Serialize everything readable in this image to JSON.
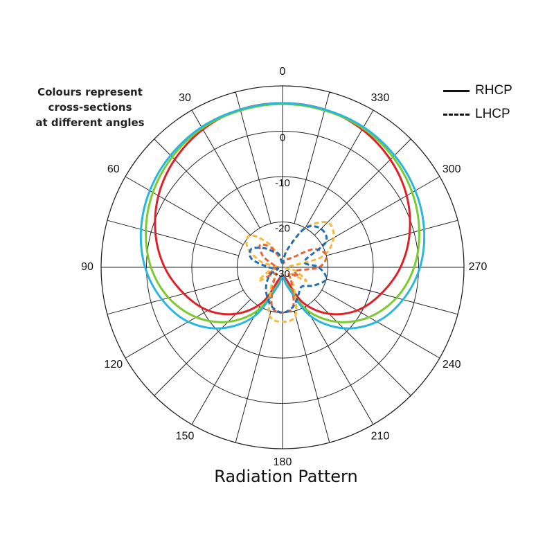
{
  "note": {
    "lines": [
      "Colours represent",
      "cross-sections",
      "at different angles"
    ]
  },
  "legend": {
    "entries": [
      {
        "label": "RHCP",
        "style": "solid"
      },
      {
        "label": "LHCP",
        "style": "dashed"
      }
    ]
  },
  "chart_data": {
    "type": "polar-line",
    "title": "Radiation Pattern",
    "angle_unit": "degrees",
    "angle_zero": "top",
    "angle_direction": "counterclockwise",
    "angle_ticks": [
      0,
      30,
      60,
      90,
      120,
      150,
      180,
      210,
      240,
      270,
      300,
      330
    ],
    "angle_tick_labels": [
      "0",
      "30",
      "60",
      "90",
      "120",
      "150",
      "180",
      "210",
      "240",
      "270",
      "300",
      "330"
    ],
    "radial_ticks": [
      0,
      -10,
      -20,
      -30
    ],
    "radial_tick_labels": [
      "0",
      "-10",
      "-20",
      "-30"
    ],
    "rlim": [
      -30,
      10
    ],
    "radial_gridlines": [
      10,
      0,
      -10,
      -20
    ],
    "spoke_step_degrees": 15,
    "grid": true,
    "angles": [
      0,
      15,
      30,
      45,
      60,
      75,
      90,
      105,
      120,
      135,
      150,
      165,
      180,
      195,
      210,
      225,
      240,
      255,
      270,
      285,
      300,
      315,
      330,
      345
    ],
    "series": [
      {
        "color": "#e02029",
        "style": "solid",
        "values": [
          6.2,
          6.0,
          5.1,
          3.6,
          1.6,
          -1.0,
          -4.0,
          -7.5,
          -11.0,
          -15.5,
          -21.0,
          -27.5,
          -28.0,
          -27.5,
          -21.0,
          -15.5,
          -11.0,
          -7.5,
          -4.0,
          -1.0,
          1.6,
          3.6,
          5.1,
          6.0
        ]
      },
      {
        "color": "#7acb2e",
        "style": "solid",
        "values": [
          6.0,
          5.8,
          5.4,
          4.4,
          3.0,
          1.2,
          -1.0,
          -4.0,
          -8.0,
          -13.0,
          -19.0,
          -26.0,
          -28.0,
          -26.0,
          -19.0,
          -13.0,
          -8.0,
          -4.0,
          -1.0,
          1.2,
          3.0,
          4.4,
          5.4,
          5.8
        ]
      },
      {
        "color": "#29b6e0",
        "style": "solid",
        "values": [
          6.2,
          6.0,
          5.7,
          4.9,
          3.8,
          2.3,
          0.3,
          -2.5,
          -6.0,
          -11.0,
          -17.5,
          -25.5,
          -28.0,
          -25.5,
          -17.5,
          -11.0,
          -6.0,
          -2.5,
          0.3,
          2.3,
          3.8,
          4.9,
          5.7,
          6.0
        ]
      },
      {
        "color": "#f6b93b",
        "style": "dashed",
        "values": [
          -29,
          -28,
          -24,
          -20,
          -21,
          -25,
          -29,
          -27,
          -24,
          -28,
          -25,
          -19,
          -18,
          -19,
          -25,
          -28,
          -24,
          -27,
          -29,
          -21,
          -17,
          -16,
          -20,
          -26
        ]
      },
      {
        "color": "#e5653a",
        "style": "dashed",
        "values": [
          -29,
          -28,
          -25,
          -23,
          -25,
          -28,
          -29,
          -28,
          -26,
          -28,
          -26,
          -21,
          -20,
          -21,
          -26,
          -28,
          -26,
          -27,
          -22,
          -20,
          -22,
          -27,
          -28,
          -29
        ]
      },
      {
        "color": "#1f6fb8",
        "style": "dashed",
        "values": [
          -29,
          -27,
          -26,
          -24,
          -22,
          -23,
          -27,
          -29,
          -27,
          -25,
          -23,
          -21,
          -20,
          -21,
          -23,
          -24,
          -22,
          -20,
          -22,
          -25,
          -19,
          -18,
          -20,
          -26
        ]
      }
    ]
  }
}
